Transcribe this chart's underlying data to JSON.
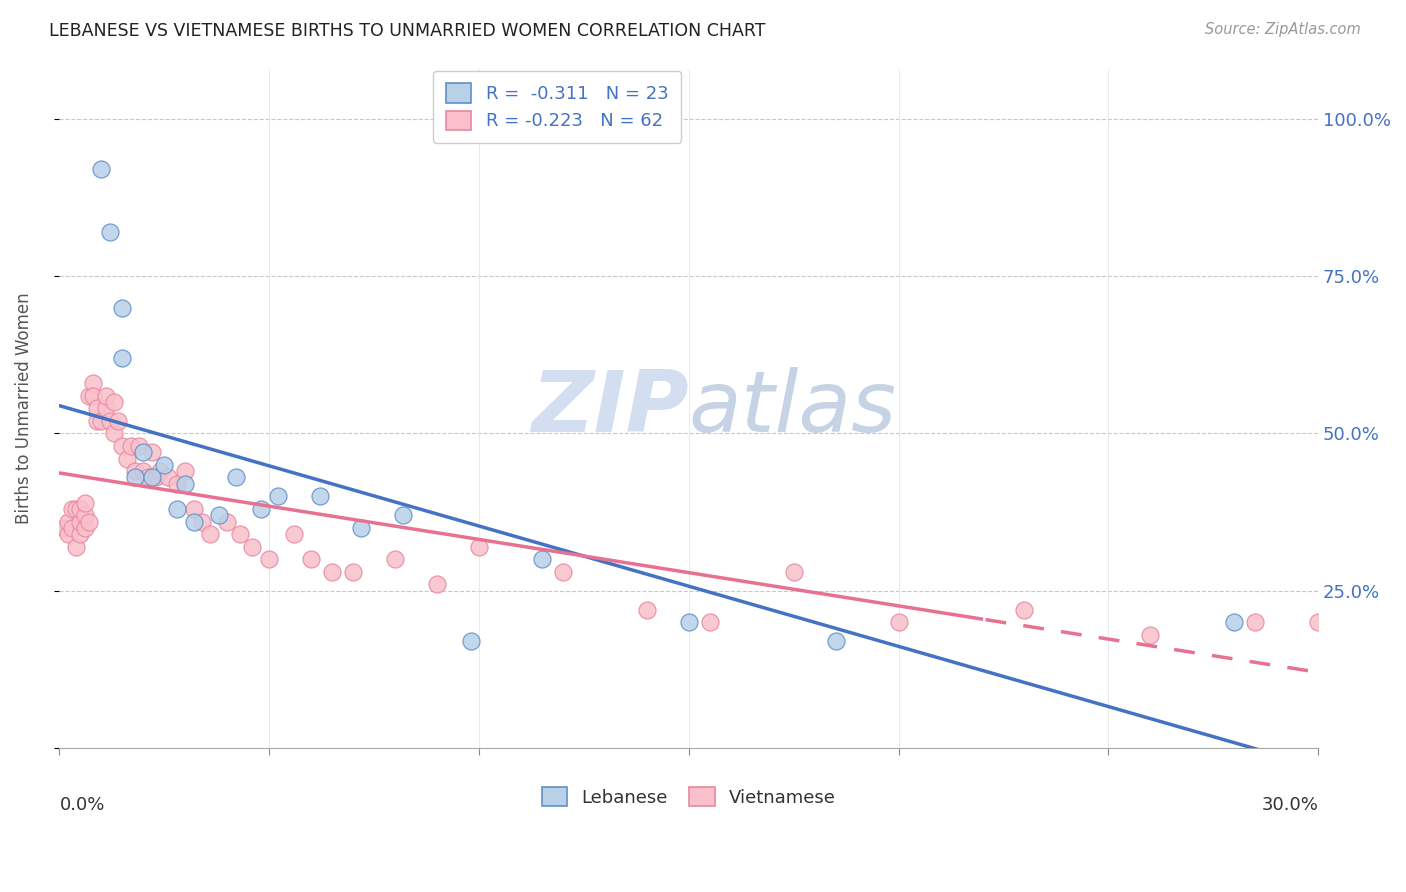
{
  "title": "LEBANESE VS VIETNAMESE BIRTHS TO UNMARRIED WOMEN CORRELATION CHART",
  "source": "Source: ZipAtlas.com",
  "ylabel": "Births to Unmarried Women",
  "yticks": [
    0.0,
    0.25,
    0.5,
    0.75,
    1.0
  ],
  "ytick_labels": [
    "",
    "25.0%",
    "50.0%",
    "75.0%",
    "100.0%"
  ],
  "xmin": 0.0,
  "xmax": 0.3,
  "ymin": 0.0,
  "ymax": 1.08,
  "legend_r_lebanese": "R =  -0.311",
  "legend_n_lebanese": "N = 23",
  "legend_r_vietnamese": "R = -0.223",
  "legend_n_vietnamese": "N = 62",
  "lebanese_fill": "#b8d0e8",
  "vietnamese_fill": "#f9c0cb",
  "lebanese_edge": "#6090c8",
  "vietnamese_edge": "#e888a0",
  "line_lebanese": "#4472c4",
  "line_vietnamese": "#e87090",
  "watermark_color": "#dce8f5",
  "lebanese_x": [
    0.01,
    0.012,
    0.015,
    0.015,
    0.018,
    0.02,
    0.022,
    0.025,
    0.028,
    0.03,
    0.032,
    0.038,
    0.042,
    0.048,
    0.052,
    0.062,
    0.072,
    0.082,
    0.098,
    0.115,
    0.15,
    0.185,
    0.28
  ],
  "lebanese_y": [
    0.92,
    0.82,
    0.7,
    0.62,
    0.43,
    0.47,
    0.43,
    0.45,
    0.38,
    0.42,
    0.36,
    0.37,
    0.43,
    0.38,
    0.4,
    0.4,
    0.35,
    0.37,
    0.17,
    0.3,
    0.2,
    0.17,
    0.2
  ],
  "vietnamese_x": [
    0.001,
    0.002,
    0.002,
    0.003,
    0.003,
    0.004,
    0.004,
    0.005,
    0.005,
    0.005,
    0.006,
    0.006,
    0.006,
    0.007,
    0.007,
    0.008,
    0.008,
    0.009,
    0.009,
    0.01,
    0.011,
    0.011,
    0.012,
    0.013,
    0.013,
    0.014,
    0.015,
    0.016,
    0.017,
    0.018,
    0.019,
    0.02,
    0.021,
    0.022,
    0.023,
    0.024,
    0.026,
    0.028,
    0.03,
    0.032,
    0.034,
    0.036,
    0.04,
    0.043,
    0.046,
    0.05,
    0.056,
    0.06,
    0.065,
    0.07,
    0.08,
    0.09,
    0.1,
    0.12,
    0.14,
    0.155,
    0.175,
    0.2,
    0.23,
    0.26,
    0.285,
    0.3
  ],
  "vietnamese_y": [
    0.35,
    0.34,
    0.36,
    0.35,
    0.38,
    0.32,
    0.38,
    0.34,
    0.36,
    0.38,
    0.35,
    0.37,
    0.39,
    0.36,
    0.56,
    0.58,
    0.56,
    0.52,
    0.54,
    0.52,
    0.54,
    0.56,
    0.52,
    0.55,
    0.5,
    0.52,
    0.48,
    0.46,
    0.48,
    0.44,
    0.48,
    0.44,
    0.43,
    0.47,
    0.43,
    0.44,
    0.43,
    0.42,
    0.44,
    0.38,
    0.36,
    0.34,
    0.36,
    0.34,
    0.32,
    0.3,
    0.34,
    0.3,
    0.28,
    0.28,
    0.3,
    0.26,
    0.32,
    0.28,
    0.22,
    0.2,
    0.28,
    0.2,
    0.22,
    0.18,
    0.2,
    0.2
  ]
}
